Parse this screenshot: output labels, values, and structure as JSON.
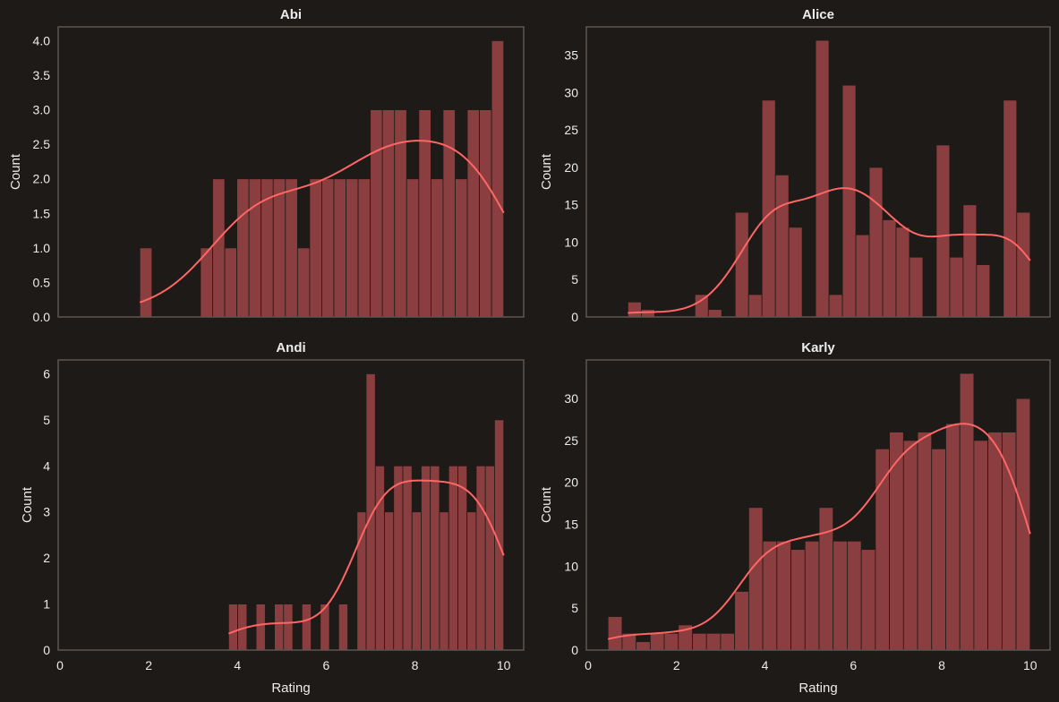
{
  "colors": {
    "background": "#1e1a17",
    "bar": "#8b3e3f",
    "bar_edge": "#1e1a17",
    "kde": "#ff6666",
    "spine": "#5b5652",
    "text": "#ececec"
  },
  "chart_data": [
    {
      "type": "bar",
      "title": "Abi",
      "xlabel": "",
      "ylabel": "Count",
      "xlim": [
        -0.04,
        10.45
      ],
      "ylim": [
        0,
        4.2
      ],
      "xticks": [],
      "yticks": [
        "0.0",
        "0.5",
        "1.0",
        "1.5",
        "2.0",
        "2.5",
        "3.0",
        "3.5",
        "4.0"
      ],
      "grid": false,
      "kde": true,
      "bin_range": [
        1.8,
        10
      ],
      "counts": [
        1,
        0,
        0,
        0,
        0,
        1,
        2,
        1,
        2,
        2,
        2,
        2,
        2,
        1,
        2,
        2,
        2,
        2,
        2,
        3,
        3,
        3,
        2,
        3,
        2,
        3,
        2,
        3,
        3,
        4
      ]
    },
    {
      "type": "bar",
      "title": "Alice",
      "xlabel": "",
      "ylabel": "Count",
      "xlim": [
        -0.04,
        10.45
      ],
      "ylim": [
        0,
        38.8
      ],
      "xticks": [],
      "yticks": [
        "0",
        "5",
        "10",
        "15",
        "20",
        "25",
        "30",
        "35"
      ],
      "grid": false,
      "kde": true,
      "bin_range": [
        0.9,
        10
      ],
      "counts": [
        2,
        1,
        0,
        0,
        0,
        3,
        1,
        0,
        14,
        3,
        29,
        19,
        12,
        0,
        37,
        3,
        31,
        11,
        20,
        13,
        12,
        8,
        0,
        23,
        8,
        15,
        7,
        0,
        29,
        14
      ]
    },
    {
      "type": "bar",
      "title": "Andi",
      "xlabel": "Rating",
      "ylabel": "Count",
      "xlim": [
        -0.04,
        10.45
      ],
      "ylim": [
        0,
        6.3
      ],
      "xticks": [
        "0",
        "2",
        "4",
        "6",
        "8",
        "10"
      ],
      "yticks": [
        "0",
        "1",
        "2",
        "3",
        "4",
        "5",
        "6"
      ],
      "grid": false,
      "kde": true,
      "bin_range": [
        3.8,
        10
      ],
      "counts": [
        1,
        1,
        0,
        1,
        0,
        1,
        1,
        0,
        1,
        0,
        1,
        0,
        1,
        0,
        3,
        6,
        4,
        3,
        4,
        4,
        3,
        4,
        4,
        3,
        4,
        4,
        3,
        4,
        4,
        5
      ]
    },
    {
      "type": "bar",
      "title": "Karly",
      "xlabel": "Rating",
      "ylabel": "Count",
      "xlim": [
        -0.04,
        10.45
      ],
      "ylim": [
        0,
        34.6
      ],
      "xticks": [
        "0",
        "2",
        "4",
        "6",
        "8",
        "10"
      ],
      "yticks": [
        "0",
        "5",
        "10",
        "15",
        "20",
        "25",
        "30"
      ],
      "grid": false,
      "kde": true,
      "bin_range": [
        0.45,
        10
      ],
      "counts": [
        4,
        2,
        1,
        2,
        2,
        3,
        2,
        2,
        2,
        7,
        17,
        13,
        13,
        12,
        13,
        17,
        13,
        13,
        12,
        24,
        26,
        25,
        26,
        24,
        27,
        33,
        25,
        26,
        26,
        30
      ]
    }
  ]
}
